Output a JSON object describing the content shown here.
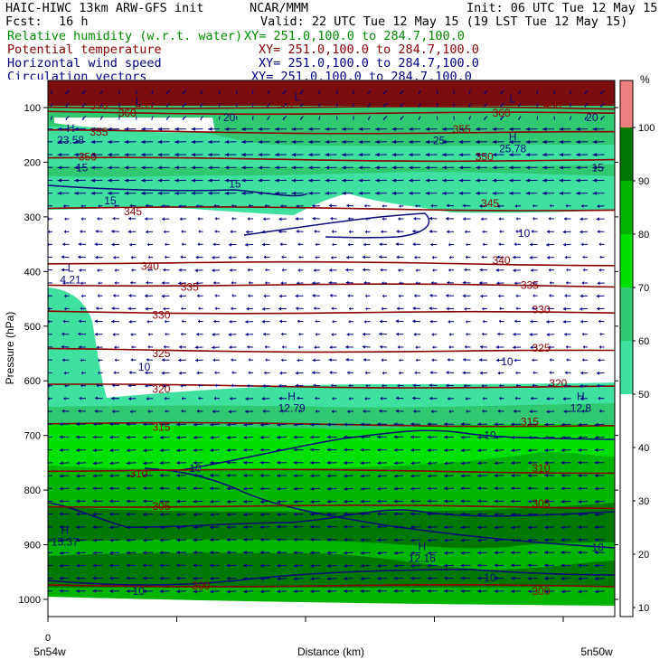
{
  "header": {
    "model": "HAIC-HIWC 13km ARW-GFS init",
    "org": "NCAR/MMM",
    "init": "Init: 06 UTC Tue 12 May 15",
    "fcst_label": "Fcst:",
    "fcst_value": "16 h",
    "valid": "Valid: 22 UTC Tue 12 May 15 (19 LST Tue 12 May 15)",
    "fields": [
      {
        "name": "Relative humidity (w.r.t. water)",
        "xy": "XY= 251.0,100.0 to 284.7,100.0",
        "color": "#008a00"
      },
      {
        "name": "Potential temperature",
        "xy": "XY= 251.0,100.0 to 284.7,100.0",
        "color": "#8b0000"
      },
      {
        "name": "Horizontal wind speed",
        "xy": "XY= 251.0,100.0 to 284.7,100.0",
        "color": "#000080"
      },
      {
        "name": "Circulation vectors",
        "xy": "XY= 251.0,100.0 to 284.7,100.0",
        "color": "#000080"
      }
    ]
  },
  "chart_data": {
    "type": "heatmap",
    "ylabel": "Pressure (hPa)",
    "xlabel": "Distance (km)",
    "y_ticks": [
      100,
      200,
      300,
      400,
      500,
      600,
      700,
      800,
      900,
      1000
    ],
    "x_tick_zero": "0",
    "x_left_label": "5n54w",
    "x_right_label": "5n50w",
    "colorbar": {
      "unit": "%",
      "ticks": [
        10,
        20,
        30,
        40,
        50,
        60,
        70,
        80,
        90,
        100
      ],
      "bands": [
        {
          "from": 50,
          "to": 60,
          "color": "#40e0a0"
        },
        {
          "from": 60,
          "to": 70,
          "color": "#30c870"
        },
        {
          "from": 70,
          "to": 80,
          "color": "#00e000"
        },
        {
          "from": 80,
          "to": 90,
          "color": "#00b400"
        },
        {
          "from": 90,
          "to": 100,
          "color": "#007800"
        },
        {
          "from": 100,
          "to": 110,
          "color": "#f08080"
        }
      ]
    },
    "theta_isentropes": [
      {
        "value": "300",
        "p": 975
      },
      {
        "value": "305",
        "p": 830
      },
      {
        "value": "310",
        "p": 765
      },
      {
        "value": "315",
        "p": 680
      },
      {
        "value": "320",
        "p": 610
      },
      {
        "value": "325",
        "p": 545
      },
      {
        "value": "330",
        "p": 475
      },
      {
        "value": "335",
        "p": 425
      },
      {
        "value": "340",
        "p": 385
      },
      {
        "value": "345",
        "p": 285
      },
      {
        "value": "350",
        "p": 195
      },
      {
        "value": "355",
        "p": 145
      },
      {
        "value": "360",
        "p": 110
      },
      {
        "value": "370",
        "p": 100
      }
    ],
    "theta_labels": [
      {
        "text": "300",
        "x": 0.27,
        "p": 975
      },
      {
        "text": "300",
        "x": 0.87,
        "p": 985
      },
      {
        "text": "305",
        "x": 0.2,
        "p": 830
      },
      {
        "text": "305",
        "x": 0.87,
        "p": 825
      },
      {
        "text": "310",
        "x": 0.16,
        "p": 770
      },
      {
        "text": "310",
        "x": 0.87,
        "p": 760
      },
      {
        "text": "315",
        "x": 0.2,
        "p": 685
      },
      {
        "text": "315",
        "x": 0.85,
        "p": 675
      },
      {
        "text": "320",
        "x": 0.2,
        "p": 615
      },
      {
        "text": "320",
        "x": 0.9,
        "p": 605
      },
      {
        "text": "325",
        "x": 0.2,
        "p": 550
      },
      {
        "text": "325",
        "x": 0.87,
        "p": 540
      },
      {
        "text": "330",
        "x": 0.2,
        "p": 480
      },
      {
        "text": "330",
        "x": 0.87,
        "p": 470
      },
      {
        "text": "335",
        "x": 0.25,
        "p": 428
      },
      {
        "text": "335",
        "x": 0.85,
        "p": 425
      },
      {
        "text": "340",
        "x": 0.18,
        "p": 390
      },
      {
        "text": "340",
        "x": 0.8,
        "p": 380
      },
      {
        "text": "345",
        "x": 0.15,
        "p": 290
      },
      {
        "text": "345",
        "x": 0.78,
        "p": 275
      },
      {
        "text": "350",
        "x": 0.07,
        "p": 190
      },
      {
        "text": "350",
        "x": 0.77,
        "p": 190
      },
      {
        "text": "355",
        "x": 0.09,
        "p": 145
      },
      {
        "text": "355",
        "x": 0.73,
        "p": 140
      },
      {
        "text": "360",
        "x": 0.14,
        "p": 110
      },
      {
        "text": "360",
        "x": 0.8,
        "p": 110
      },
      {
        "text": "370",
        "x": 0.09,
        "p": 97
      },
      {
        "text": "400",
        "x": 0.89,
        "p": 95
      },
      {
        "text": "507",
        "x": 0.42,
        "p": 95
      },
      {
        "text": "455",
        "x": 0.17,
        "p": 95
      }
    ],
    "wind_labels": [
      {
        "text": "10",
        "x": 0.84,
        "p": 330
      },
      {
        "text": "10",
        "x": 0.17,
        "p": 575
      },
      {
        "text": "10",
        "x": 0.81,
        "p": 565
      },
      {
        "text": "10",
        "x": 0.78,
        "p": 700
      },
      {
        "text": "10",
        "x": 0.26,
        "p": 760
      },
      {
        "text": "10",
        "x": 0.97,
        "p": 905
      },
      {
        "text": "10",
        "x": 0.78,
        "p": 960
      },
      {
        "text": "10",
        "x": 0.16,
        "p": 985
      },
      {
        "text": "15",
        "x": 0.06,
        "p": 210
      },
      {
        "text": "15",
        "x": 0.33,
        "p": 240
      },
      {
        "text": "15",
        "x": 0.11,
        "p": 270
      },
      {
        "text": "15",
        "x": 0.97,
        "p": 210
      },
      {
        "text": "20",
        "x": 0.32,
        "p": 118
      },
      {
        "text": "20",
        "x": 0.96,
        "p": 118
      },
      {
        "text": "25",
        "x": 0.69,
        "p": 160
      }
    ],
    "extrema": [
      {
        "type": "L",
        "value": "",
        "x": 0.16,
        "p": 95
      },
      {
        "type": "L",
        "value": "",
        "x": 0.44,
        "p": 87
      },
      {
        "type": "L",
        "value": "",
        "x": 0.82,
        "p": 91
      },
      {
        "type": "H",
        "value": "23.58",
        "x": 0.04,
        "p": 145
      },
      {
        "type": "H",
        "value": "25.78",
        "x": 0.82,
        "p": 160
      },
      {
        "type": "L",
        "value": "4.21",
        "x": 0.04,
        "p": 400
      },
      {
        "type": "H",
        "value": "12.79",
        "x": 0.43,
        "p": 635
      },
      {
        "type": "H",
        "value": "12.8",
        "x": 0.94,
        "p": 635
      },
      {
        "type": "H",
        "value": "15.37",
        "x": 0.03,
        "p": 880
      },
      {
        "type": "H",
        "value": "12.16",
        "x": 0.66,
        "p": 910
      }
    ]
  }
}
